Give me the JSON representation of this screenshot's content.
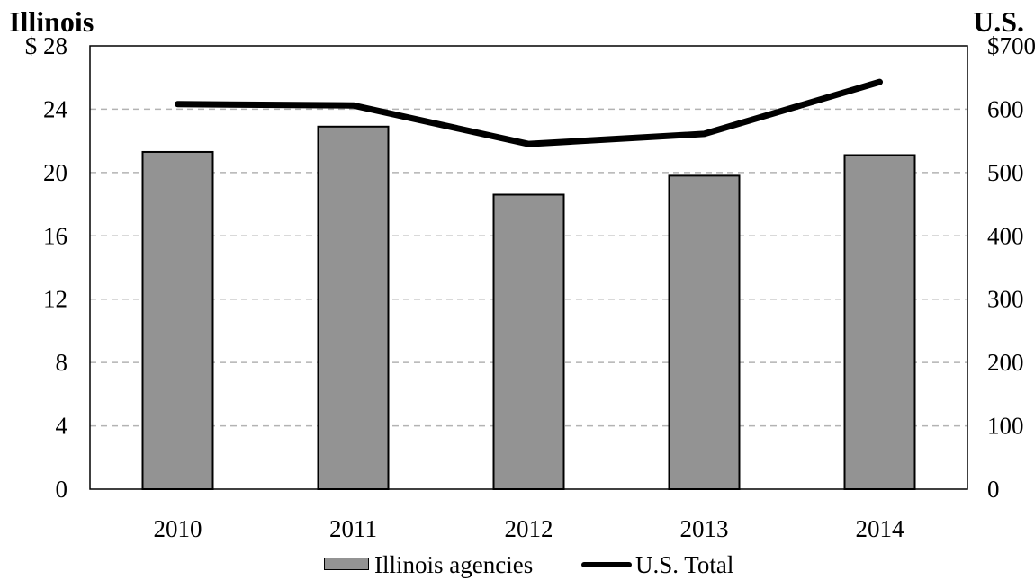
{
  "chart_data": {
    "type": "bar",
    "categories": [
      "2010",
      "2011",
      "2012",
      "2013",
      "2014"
    ],
    "left_axis": {
      "title": "Illinois",
      "ylim": [
        0,
        28
      ],
      "ticks": [
        0,
        4,
        8,
        12,
        16,
        20,
        24,
        28
      ],
      "top_label": "$ 28"
    },
    "right_axis": {
      "title": "U.S.",
      "ylim": [
        0,
        700
      ],
      "ticks": [
        0,
        100,
        200,
        300,
        400,
        500,
        600,
        700
      ],
      "top_label": "$700"
    },
    "series": [
      {
        "name": "Illinois agencies",
        "type": "bar",
        "axis": "left",
        "color": "#939393",
        "values": [
          21.3,
          22.9,
          18.6,
          19.8,
          21.1
        ]
      },
      {
        "name": "U.S. Total",
        "type": "line",
        "axis": "right",
        "color": "#000000",
        "values": [
          608,
          606,
          545,
          561,
          643
        ]
      }
    ],
    "grid": true,
    "legend_position": "bottom-center"
  }
}
